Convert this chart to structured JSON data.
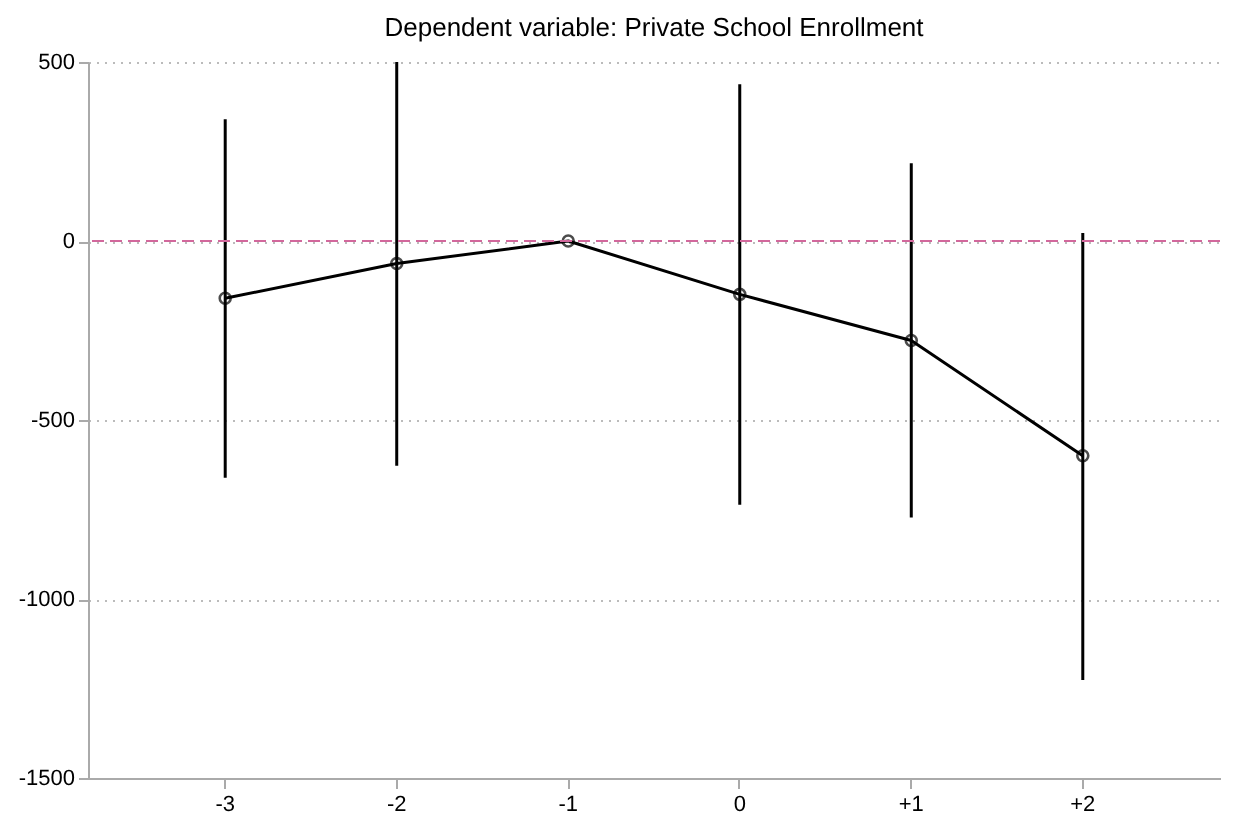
{
  "chart_data": {
    "type": "line",
    "title": "Dependent variable: Private School Enrollment",
    "categories": [
      "-3",
      "-2",
      "-1",
      "0",
      "+1",
      "+2"
    ],
    "series": [
      {
        "color": "#000000",
        "values": [
          -160,
          -63,
          0,
          -149,
          -278,
          -600
        ],
        "errors": [
          [
            -661,
            340
          ],
          [
            -628,
            500
          ],
          null,
          [
            -737,
            438
          ],
          [
            -772,
            217
          ],
          [
            -1226,
            22
          ]
        ]
      }
    ],
    "ylim": [
      -1500,
      500
    ],
    "yticks": [
      -1500,
      -1000,
      -500,
      0,
      500
    ],
    "grid": "y",
    "marker": "circle",
    "line_style": "solid",
    "ref_lines": [
      {
        "axis": "y",
        "value": 0,
        "color": "#d2689c",
        "line_style": "dashed"
      }
    ]
  }
}
